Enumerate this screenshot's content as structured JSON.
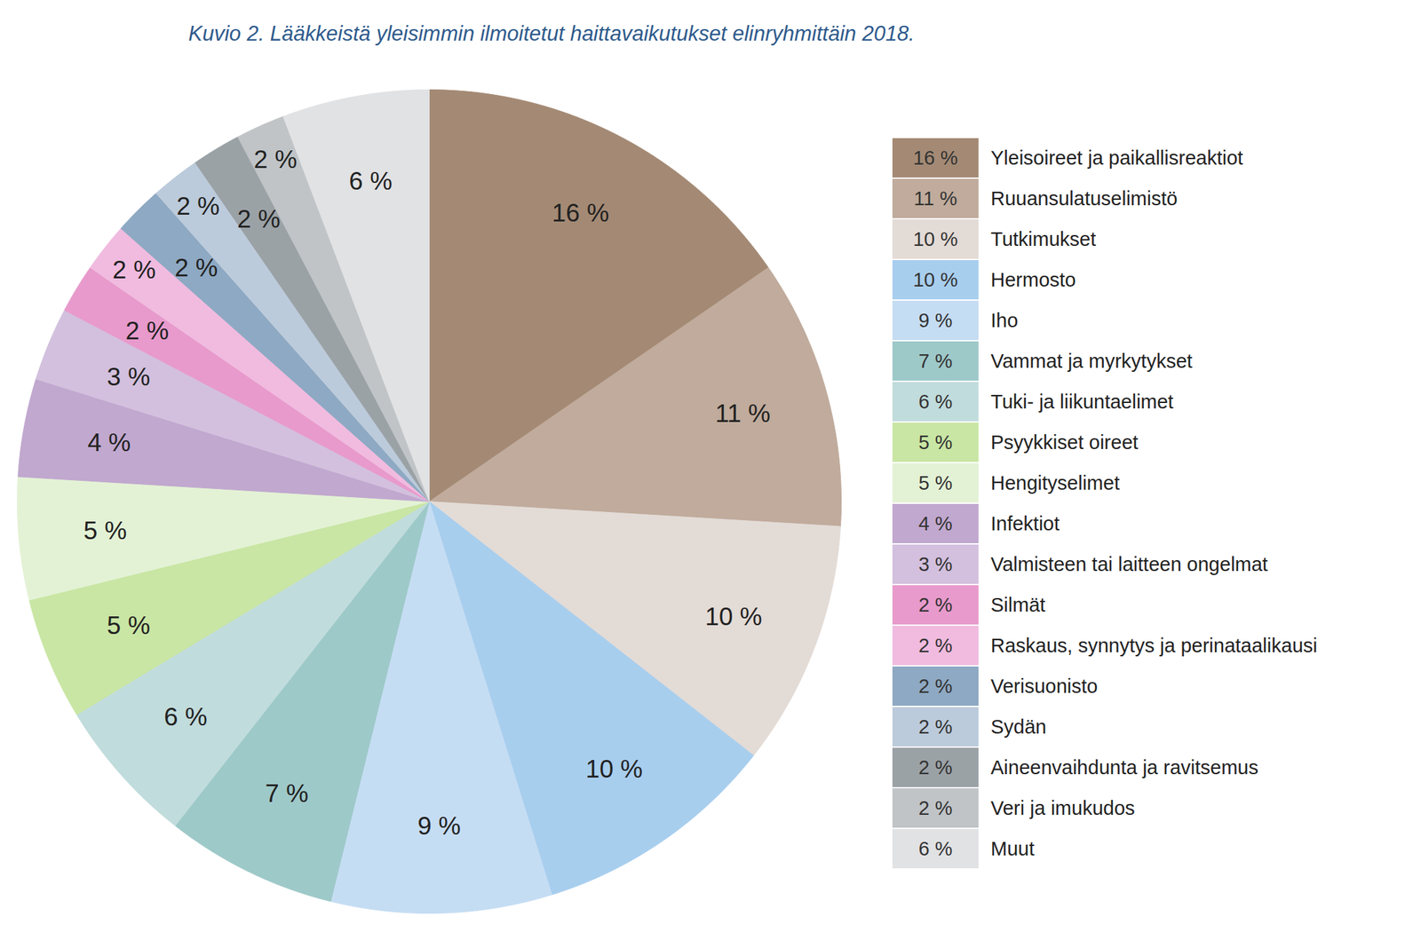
{
  "chart_data": {
    "type": "pie",
    "title": "Kuvio 2. Lääkkeistä yleisimmin ilmoitetut haittavaikutukset elinryhmittäin 2018.",
    "categories": [
      "Yleisoireet ja paikallisreaktiot",
      "Ruuansulatuselimistö",
      "Tutkimukset",
      "Hermosto",
      "Iho",
      "Vammat ja myrkytykset",
      "Tuki- ja liikuntaelimet",
      "Psyykkiset oireet",
      "Hengityselimet",
      "Infektiot",
      "Valmisteen tai laitteen ongelmat",
      "Silmät",
      "Raskaus, synnytys ja perinataalikausi",
      "Verisuonisto",
      "Sydän",
      "Aineenvaihdunta ja ravitsemus",
      "Veri ja imukudos",
      "Muut"
    ],
    "values": [
      16,
      11,
      10,
      10,
      9,
      7,
      6,
      5,
      5,
      4,
      3,
      2,
      2,
      2,
      2,
      2,
      2,
      6
    ],
    "value_labels": [
      "16 %",
      "11 %",
      "10 %",
      "10 %",
      "9 %",
      "7 %",
      "6 %",
      "5 %",
      "5 %",
      "4 %",
      "3 %",
      "2 %",
      "2 %",
      "2 %",
      "2 %",
      "2 %",
      "2 %",
      "6 %"
    ],
    "colors": [
      "#a48a74",
      "#c0ab9c",
      "#e3dbd6",
      "#a8ceee",
      "#c5ddf3",
      "#9ec9c9",
      "#c1dcdc",
      "#c9e6a4",
      "#e3f2d5",
      "#c1a8cf",
      "#d3c0de",
      "#e89acc",
      "#f0bbdf",
      "#8ea9c3",
      "#bccbdb",
      "#9ba2a6",
      "#c0c4c7",
      "#e1e2e4"
    ],
    "data_labels": true,
    "legend": "right"
  }
}
